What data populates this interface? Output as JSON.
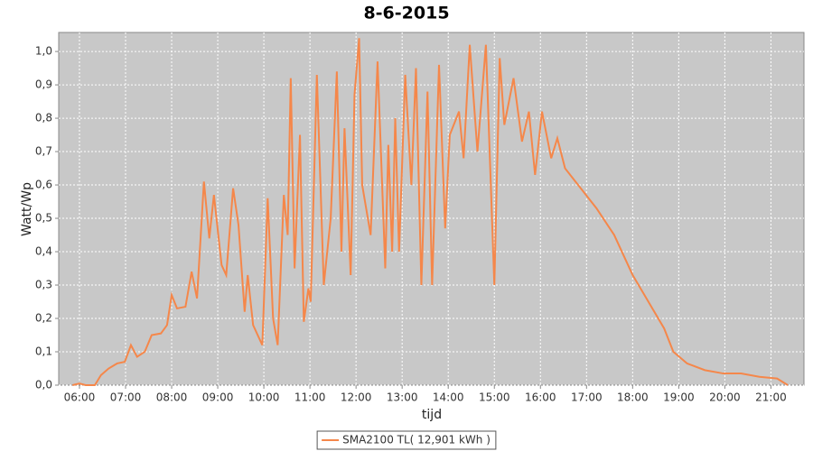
{
  "chart_data": {
    "type": "line",
    "title": "8-6-2015",
    "x_label": "tijd",
    "y_label": "Watt/Wp",
    "x": [
      "05:51",
      "06:00",
      "06:08",
      "06:20",
      "06:28",
      "06:38",
      "06:49",
      "06:59",
      "07:07",
      "07:15",
      "07:25",
      "07:34",
      "07:46",
      "07:54",
      "08:00",
      "08:07",
      "08:18",
      "08:26",
      "08:33",
      "08:42",
      "08:49",
      "08:55",
      "09:05",
      "09:11",
      "09:20",
      "09:27",
      "09:35",
      "09:39",
      "09:46",
      "09:58",
      "10:05",
      "10:12",
      "10:18",
      "10:26",
      "10:31",
      "10:35",
      "10:40",
      "10:47",
      "10:52",
      "10:58",
      "11:01",
      "11:09",
      "11:18",
      "11:27",
      "11:35",
      "11:41",
      "11:45",
      "11:53",
      "11:58",
      "12:04",
      "12:08",
      "12:19",
      "12:28",
      "12:38",
      "12:42",
      "12:47",
      "12:51",
      "12:56",
      "13:04",
      "13:12",
      "13:18",
      "13:25",
      "13:33",
      "13:39",
      "13:48",
      "13:56",
      "14:02",
      "14:14",
      "14:20",
      "14:28",
      "14:38",
      "14:49",
      "15:00",
      "15:07",
      "15:13",
      "15:25",
      "15:36",
      "15:45",
      "15:53",
      "16:02",
      "16:14",
      "16:22",
      "16:32",
      "16:49",
      "17:13",
      "17:36",
      "18:00",
      "18:18",
      "18:41",
      "18:53",
      "19:11",
      "19:34",
      "19:58",
      "20:21",
      "20:45",
      "21:08",
      "21:22"
    ],
    "series": [
      {
        "name": "SMA2100 TL( 12,901 kWh )",
        "color": "#f5874a",
        "values": [
          0,
          0.005,
          0,
          0,
          0.03,
          0.05,
          0.065,
          0.07,
          0.12,
          0.085,
          0.1,
          0.15,
          0.155,
          0.18,
          0.27,
          0.23,
          0.235,
          0.34,
          0.26,
          0.61,
          0.44,
          0.57,
          0.36,
          0.33,
          0.59,
          0.48,
          0.22,
          0.33,
          0.18,
          0.12,
          0.56,
          0.2,
          0.12,
          0.57,
          0.45,
          0.92,
          0.35,
          0.75,
          0.19,
          0.29,
          0.25,
          0.93,
          0.3,
          0.5,
          0.94,
          0.4,
          0.77,
          0.33,
          0.87,
          1.04,
          0.6,
          0.45,
          0.97,
          0.35,
          0.72,
          0.4,
          0.8,
          0.4,
          0.93,
          0.6,
          0.95,
          0.3,
          0.88,
          0.3,
          0.96,
          0.47,
          0.75,
          0.82,
          0.68,
          1.02,
          0.7,
          1.02,
          0.3,
          0.98,
          0.78,
          0.92,
          0.73,
          0.82,
          0.63,
          0.82,
          0.68,
          0.74,
          0.65,
          0.6,
          0.53,
          0.45,
          0.33,
          0.26,
          0.17,
          0.1,
          0.065,
          0.045,
          0.035,
          0.035,
          0.025,
          0.02,
          0
        ]
      }
    ],
    "xlim": [
      "05:33",
      "21:43"
    ],
    "xticks": [
      "06:00",
      "07:00",
      "08:00",
      "09:00",
      "10:00",
      "11:00",
      "12:00",
      "13:00",
      "14:00",
      "15:00",
      "16:00",
      "17:00",
      "18:00",
      "19:00",
      "20:00",
      "21:00"
    ],
    "ylim": [
      0,
      1.057
    ],
    "yticks": [
      {
        "value": 0,
        "label": "0,0"
      },
      {
        "value": 0.1,
        "label": "0,1"
      },
      {
        "value": 0.2,
        "label": "0,2"
      },
      {
        "value": 0.3,
        "label": "0,3"
      },
      {
        "value": 0.4,
        "label": "0,4"
      },
      {
        "value": 0.5,
        "label": "0,5"
      },
      {
        "value": 0.6,
        "label": "0,6"
      },
      {
        "value": 0.7,
        "label": "0,7"
      },
      {
        "value": 0.8,
        "label": "0,8"
      },
      {
        "value": 0.9,
        "label": "0,9"
      },
      {
        "value": 1,
        "label": "1,0"
      }
    ],
    "grid": true,
    "legend": "bottom"
  }
}
